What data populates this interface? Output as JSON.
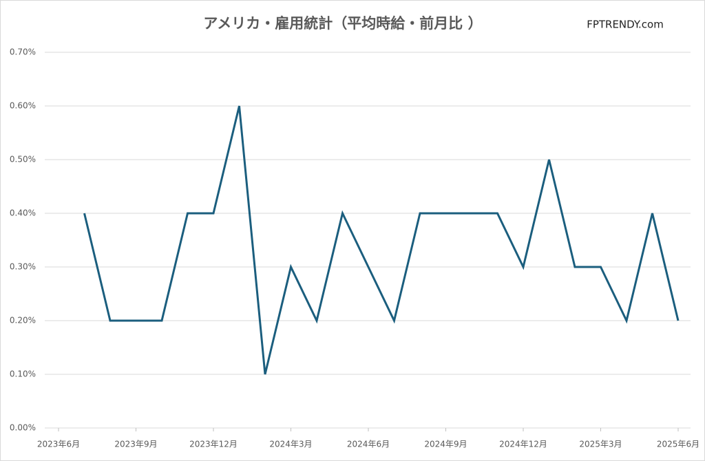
{
  "chart_data": {
    "type": "line",
    "title": "アメリカ・雇用統計（平均時給・前月比 ）",
    "annotation": "FPTRENDY.com",
    "x": [
      "2023-07",
      "2023-08",
      "2023-09",
      "2023-10",
      "2023-11",
      "2023-12",
      "2024-01",
      "2024-02",
      "2024-03",
      "2024-04",
      "2024-05",
      "2024-06",
      "2024-07",
      "2024-08",
      "2024-09",
      "2024-10",
      "2024-11",
      "2024-12",
      "2025-01",
      "2025-02",
      "2025-03",
      "2025-04",
      "2025-05",
      "2025-06"
    ],
    "series": [
      {
        "name": "平均時給・前月比",
        "color": "#1b5e7e",
        "values": [
          0.4,
          0.2,
          0.2,
          0.2,
          0.4,
          0.4,
          0.6,
          0.1,
          0.3,
          0.2,
          0.4,
          0.3,
          0.2,
          0.4,
          0.4,
          0.4,
          0.4,
          0.3,
          0.5,
          0.3,
          0.3,
          0.2,
          0.4,
          0.2
        ]
      }
    ],
    "xlim": [
      "2023-06",
      "2025-06"
    ],
    "xticks": [
      {
        "value": "2023-06",
        "label": "2023年6月"
      },
      {
        "value": "2023-09",
        "label": "2023年9月"
      },
      {
        "value": "2023-12",
        "label": "2023年12月"
      },
      {
        "value": "2024-03",
        "label": "2024年3月"
      },
      {
        "value": "2024-06",
        "label": "2024年6月"
      },
      {
        "value": "2024-09",
        "label": "2024年9月"
      },
      {
        "value": "2024-12",
        "label": "2024年12月"
      },
      {
        "value": "2025-03",
        "label": "2025年3月"
      },
      {
        "value": "2025-06",
        "label": "2025年6月"
      }
    ],
    "ylim": [
      0,
      0.7
    ],
    "yticks": [
      {
        "value": 0,
        "label": "0.00%"
      },
      {
        "value": 0.1,
        "label": "0.10%"
      },
      {
        "value": 0.2,
        "label": "0.20%"
      },
      {
        "value": 0.3,
        "label": "0.30%"
      },
      {
        "value": 0.4,
        "label": "0.40%"
      },
      {
        "value": 0.5,
        "label": "0.50%"
      },
      {
        "value": 0.6,
        "label": "0.60%"
      },
      {
        "value": 0.7,
        "label": "0.70%"
      }
    ],
    "grid": true
  }
}
